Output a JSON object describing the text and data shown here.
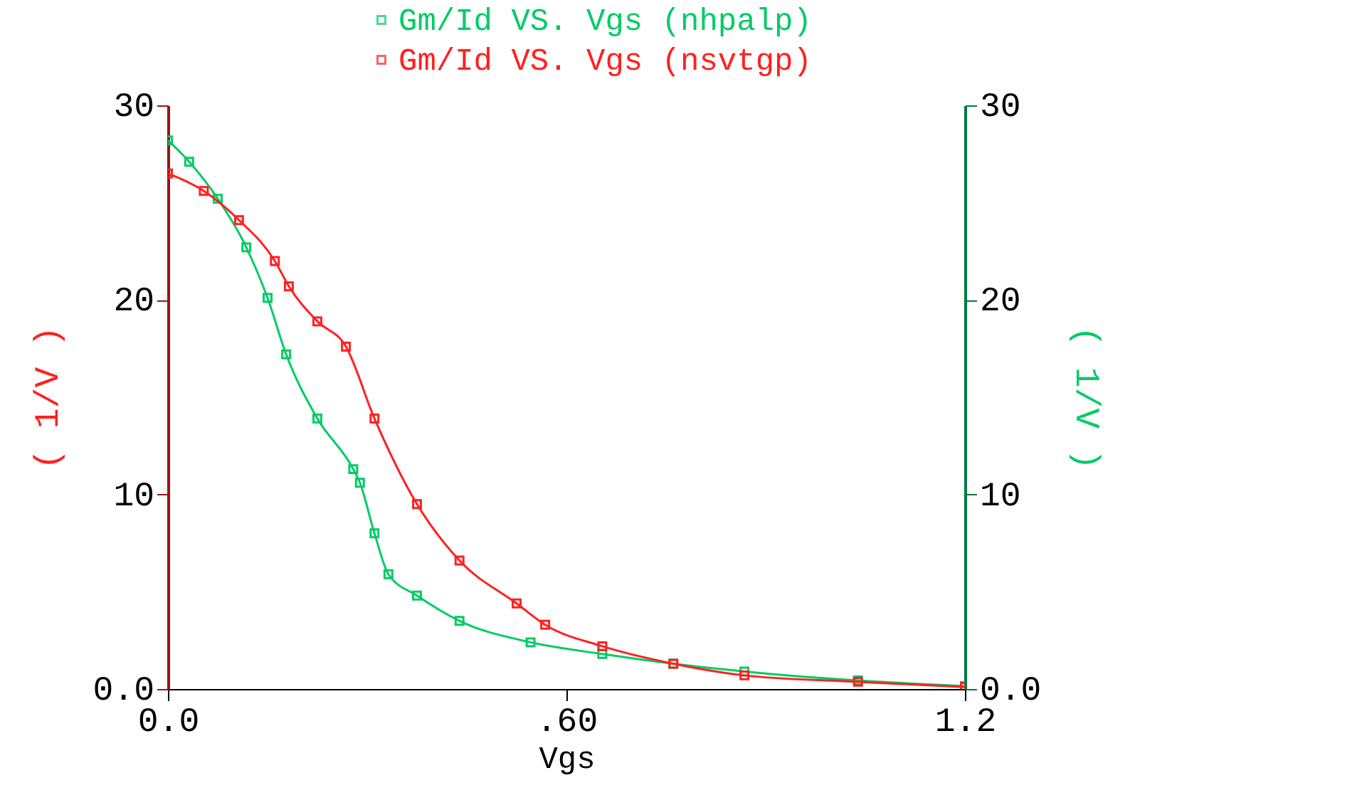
{
  "chart_data": {
    "type": "line",
    "xlabel": "Vgs",
    "ylabel": "( 1/V )",
    "y2label": "( 1/V )",
    "legend": "top",
    "marker": "square",
    "line_style": "solid",
    "grid": false,
    "xlim": [
      0,
      1.2
    ],
    "xticks": [
      {
        "value": 0,
        "label": "0.0"
      },
      {
        "value": 0.6,
        "label": ".60"
      },
      1.2
    ],
    "ylim": [
      0,
      30
    ],
    "yticks": [
      {
        "value": 0,
        "label": "0.0"
      },
      10,
      20,
      30
    ],
    "y2lim": [
      0,
      30
    ],
    "y2ticks": [
      {
        "value": 0,
        "label": "0.0"
      },
      10,
      20,
      30
    ],
    "series": [
      {
        "name": "Gm/Id VS. Vgs (nhpalp)",
        "color": "#00cc66",
        "axis": "y2",
        "x": [
          0,
          0.032,
          0.075,
          0.118,
          0.15,
          0.178,
          0.225,
          0.279,
          0.289,
          0.311,
          0.332,
          0.375,
          0.439,
          0.546,
          0.654,
          0.761,
          0.868,
          1.039,
          1.2
        ],
        "values": [
          28.2,
          27.1,
          25.2,
          22.7,
          20.1,
          17.2,
          13.9,
          11.3,
          10.6,
          8.0,
          5.9,
          4.8,
          3.5,
          2.4,
          1.8,
          1.3,
          0.9,
          0.44,
          0.15
        ]
      },
      {
        "name": "Gm/Id VS. Vgs (nsvtgp)",
        "color": "#ff2020",
        "x": [
          0,
          0.054,
          0.107,
          0.161,
          0.182,
          0.225,
          0.268,
          0.311,
          0.375,
          0.439,
          0.525,
          0.568,
          0.654,
          0.761,
          0.868,
          1.039,
          1.2
        ],
        "values": [
          26.5,
          25.6,
          24.1,
          22,
          20.7,
          18.9,
          17.6,
          13.9,
          9.5,
          6.6,
          4.4,
          3.3,
          2.2,
          1.3,
          0.7,
          0.37,
          0.1
        ]
      }
    ]
  }
}
